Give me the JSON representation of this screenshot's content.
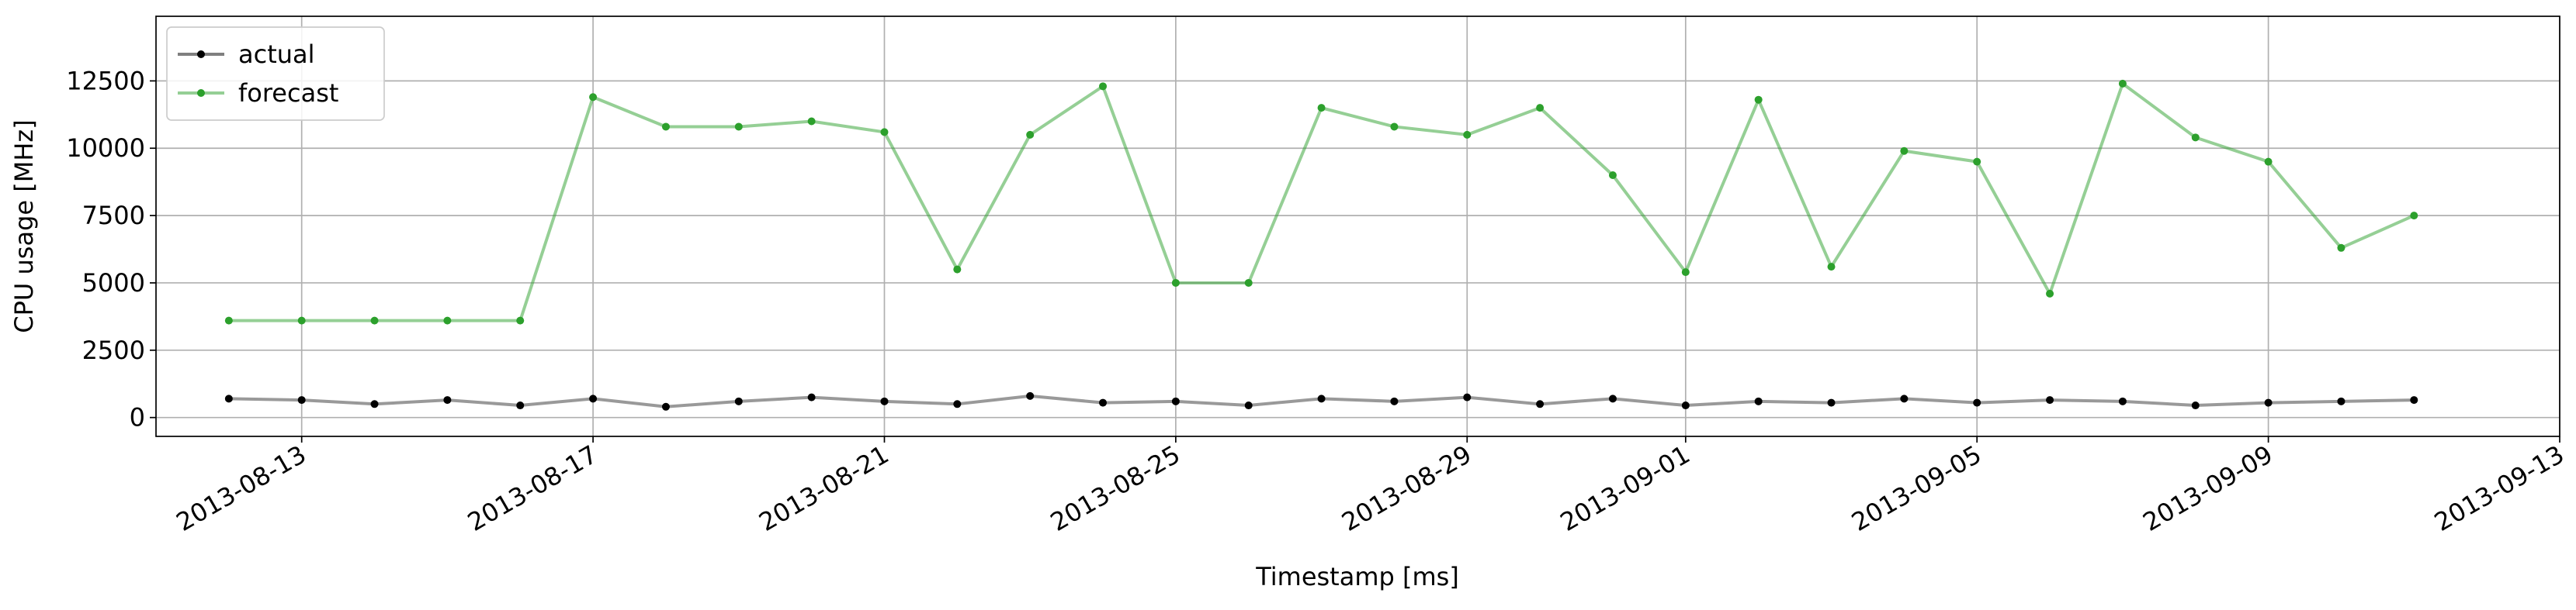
{
  "chart_data": {
    "type": "line",
    "x_label": "Timestamp [ms]",
    "y_label": "CPU usage [MHz]",
    "x": [
      "2013-08-12",
      "2013-08-13",
      "2013-08-14",
      "2013-08-15",
      "2013-08-16",
      "2013-08-17",
      "2013-08-18",
      "2013-08-19",
      "2013-08-20",
      "2013-08-21",
      "2013-08-22",
      "2013-08-23",
      "2013-08-24",
      "2013-08-25",
      "2013-08-26",
      "2013-08-27",
      "2013-08-28",
      "2013-08-29",
      "2013-08-30",
      "2013-08-31",
      "2013-09-01",
      "2013-09-02",
      "2013-09-03",
      "2013-09-04",
      "2013-09-05",
      "2013-09-06",
      "2013-09-07",
      "2013-09-08",
      "2013-09-09",
      "2013-09-10",
      "2013-09-11"
    ],
    "series": [
      {
        "name": "actual",
        "color": "#000000",
        "values": [
          700,
          650,
          500,
          650,
          450,
          700,
          400,
          600,
          750,
          600,
          500,
          800,
          550,
          600,
          450,
          700,
          600,
          750,
          500,
          700,
          450,
          600,
          550,
          700,
          550,
          650,
          600,
          450,
          550,
          600,
          650
        ]
      },
      {
        "name": "forecast",
        "color": "#2ca02c",
        "values": [
          3600,
          3600,
          3600,
          3600,
          3600,
          11900,
          10800,
          10800,
          11000,
          10600,
          5500,
          10500,
          12300,
          5000,
          5000,
          11500,
          10800,
          10500,
          11500,
          9000,
          5400,
          11800,
          5600,
          9900,
          9500,
          4600,
          12400,
          10400,
          9500,
          6300,
          7500
        ]
      }
    ],
    "xlim": [
      "2013-08-11",
      "2013-09-13"
    ],
    "xticks": [
      "2013-08-13",
      "2013-08-17",
      "2013-08-21",
      "2013-08-25",
      "2013-08-29",
      "2013-09-01",
      "2013-09-05",
      "2013-09-09",
      "2013-09-13"
    ],
    "ylim": [
      -700,
      14900
    ],
    "yticks": [
      0,
      2500,
      5000,
      7500,
      10000,
      12500
    ],
    "grid": true,
    "legend": "upper left"
  }
}
